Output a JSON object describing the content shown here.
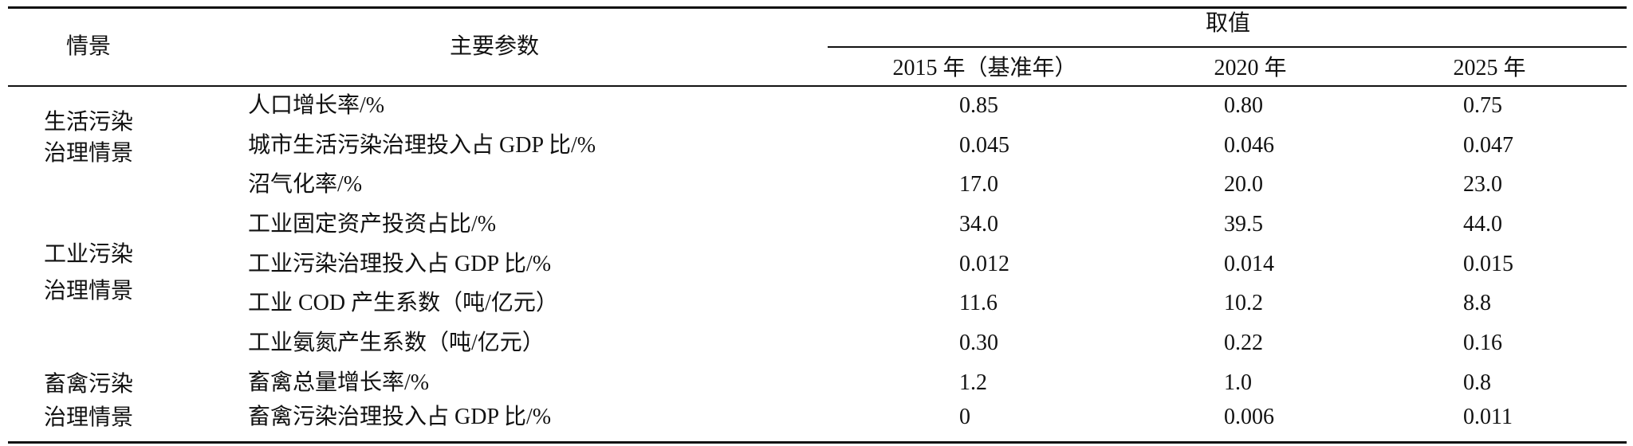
{
  "table": {
    "header": {
      "scenario": "情景",
      "parameter": "主要参数",
      "value": "取值",
      "years": [
        "2015 年（基准年）",
        "2020 年",
        "2025 年"
      ]
    },
    "groups": [
      {
        "label": [
          "生活污染",
          "治理情景"
        ],
        "rows": [
          {
            "parameter": "人口增长率/%",
            "values": [
              "0.85",
              "0.80",
              "0.75"
            ]
          },
          {
            "parameter": "城市生活污染治理投入占 GDP 比/%",
            "values": [
              "0.045",
              "0.046",
              "0.047"
            ]
          },
          {
            "parameter": "沼气化率/%",
            "values": [
              "17.0",
              "20.0",
              "23.0"
            ]
          }
        ]
      },
      {
        "label": [
          "工业污染",
          "治理情景"
        ],
        "rows": [
          {
            "parameter": "工业固定资产投资占比/%",
            "values": [
              "34.0",
              "39.5",
              "44.0"
            ]
          },
          {
            "parameter": "工业污染治理投入占 GDP 比/%",
            "values": [
              "0.012",
              "0.014",
              "0.015"
            ]
          },
          {
            "parameter": "工业 COD 产生系数（吨/亿元）",
            "values": [
              "11.6",
              "10.2",
              "8.8"
            ]
          },
          {
            "parameter": "工业氨氮产生系数（吨/亿元）",
            "values": [
              "0.30",
              "0.22",
              "0.16"
            ]
          }
        ]
      },
      {
        "label": [
          "畜禽污染",
          "治理情景"
        ],
        "rows": [
          {
            "parameter": "畜禽总量增长率/%",
            "values": [
              "1.2",
              "1.0",
              "0.8"
            ]
          },
          {
            "parameter": "畜禽污染治理投入占 GDP 比/%",
            "values": [
              "0",
              "0.006",
              "0.011"
            ]
          }
        ]
      }
    ]
  }
}
